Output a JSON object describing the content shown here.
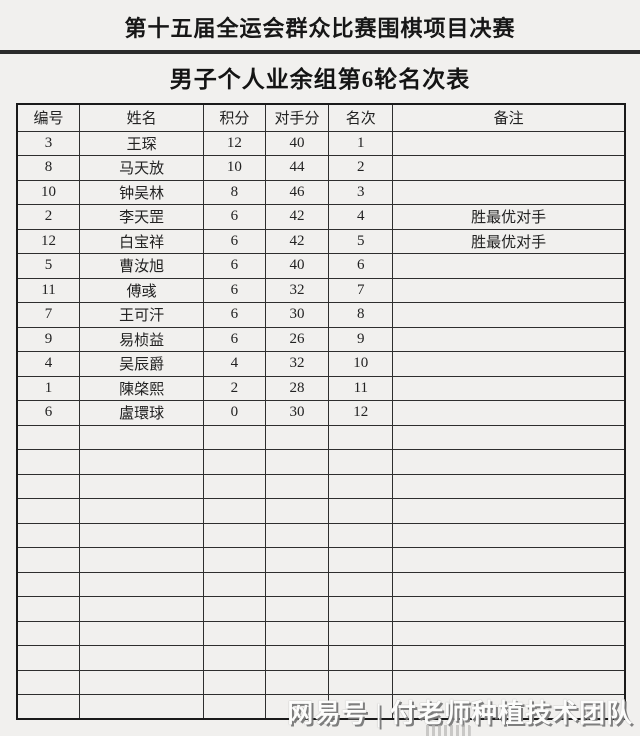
{
  "page": {
    "title": "第十五届全运会群众比赛围棋项目决赛",
    "subtitle": "男子个人业余组第6轮名次表"
  },
  "table": {
    "headers": [
      "编号",
      "姓名",
      "积分",
      "对手分",
      "名次",
      "备注"
    ],
    "rows": [
      {
        "no": "3",
        "name": "王琛",
        "points": "12",
        "opp": "40",
        "rank": "1",
        "note": ""
      },
      {
        "no": "8",
        "name": "马天放",
        "points": "10",
        "opp": "44",
        "rank": "2",
        "note": ""
      },
      {
        "no": "10",
        "name": "钟吴林",
        "points": "8",
        "opp": "46",
        "rank": "3",
        "note": ""
      },
      {
        "no": "2",
        "name": "李天罡",
        "points": "6",
        "opp": "42",
        "rank": "4",
        "note": "胜最优对手"
      },
      {
        "no": "12",
        "name": "白宝祥",
        "points": "6",
        "opp": "42",
        "rank": "5",
        "note": "胜最优对手"
      },
      {
        "no": "5",
        "name": "曹汝旭",
        "points": "6",
        "opp": "40",
        "rank": "6",
        "note": ""
      },
      {
        "no": "11",
        "name": "傅彧",
        "points": "6",
        "opp": "32",
        "rank": "7",
        "note": ""
      },
      {
        "no": "7",
        "name": "王可汗",
        "points": "6",
        "opp": "30",
        "rank": "8",
        "note": ""
      },
      {
        "no": "9",
        "name": "易桢益",
        "points": "6",
        "opp": "26",
        "rank": "9",
        "note": ""
      },
      {
        "no": "4",
        "name": "吴辰爵",
        "points": "4",
        "opp": "32",
        "rank": "10",
        "note": ""
      },
      {
        "no": "1",
        "name": "陳棨熙",
        "points": "2",
        "opp": "28",
        "rank": "11",
        "note": ""
      },
      {
        "no": "6",
        "name": "盧環球",
        "points": "0",
        "opp": "30",
        "rank": "12",
        "note": ""
      }
    ],
    "empty_row_count": 12,
    "column_width_percents": [
      10.3,
      20.4,
      10.1,
      10.5,
      10.5,
      38.2
    ]
  },
  "watermark": {
    "text": "网易号 | 付老师种植技术团队"
  },
  "colors": {
    "page_background": "#f1f0ee",
    "table_border": "#1a1a1a",
    "grid_line": "#2e2e2e",
    "text": "#1e1e1e",
    "watermark_fill": "#fcfcfb",
    "watermark_shadow": "#787878"
  }
}
